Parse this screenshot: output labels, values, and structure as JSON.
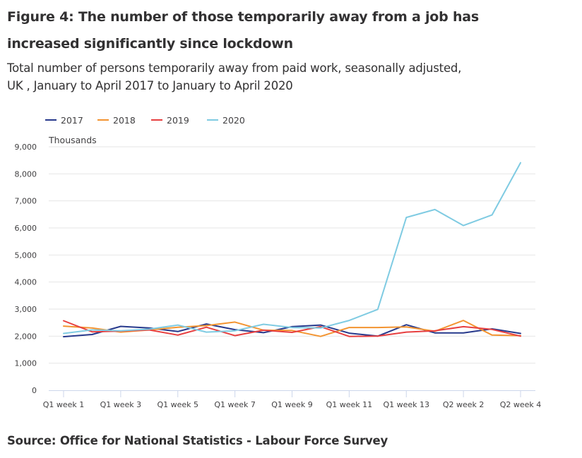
{
  "title": "Figure 4: The number of those temporarily away from a job has increased significantly since lockdown",
  "subtitle": "Total number of persons temporarily away from paid work, seasonally adjusted, UK , January to April 2017 to January to April 2020",
  "source": "Source: Office for National Statistics - Labour Force Survey",
  "chart_data": {
    "type": "line",
    "title": "Figure 4: The number of those temporarily away from a job has increased significantly since lockdown",
    "subtitle": "Total number of persons temporarily away from paid work, seasonally adjusted, UK , January to April 2017 to January to April 2020",
    "xlabel": "",
    "ylabel": "Thousands",
    "ylim": [
      0,
      9000
    ],
    "yticks": [
      0,
      1000,
      2000,
      3000,
      4000,
      5000,
      6000,
      7000,
      8000,
      9000
    ],
    "ytick_labels": [
      "0",
      "1,000",
      "2,000",
      "3,000",
      "4,000",
      "5,000",
      "6,000",
      "7,000",
      "8,000",
      "9,000"
    ],
    "grid": true,
    "legend_position": "top-left",
    "x": [
      "Q1 week 1",
      "Q1 week 2",
      "Q1 week 3",
      "Q1 week 4",
      "Q1 week 5",
      "Q1 week 6",
      "Q1 week 7",
      "Q1 week 8",
      "Q1 week 9",
      "Q1 week 10",
      "Q1 week 11",
      "Q1 week 12",
      "Q1 week 13",
      "Q2 week 1",
      "Q2 week 2",
      "Q2 week 3",
      "Q2 week 4"
    ],
    "xtick_labels": [
      "Q1 week 1",
      "Q1 week 3",
      "Q1 week 5",
      "Q1 week 7",
      "Q1 week 9",
      "Q1 week 11",
      "Q1 week 13",
      "Q2 week 2",
      "Q2 week 4"
    ],
    "series": [
      {
        "name": "2017",
        "color": "#27398c",
        "values": [
          1980,
          2060,
          2360,
          2300,
          2170,
          2450,
          2240,
          2130,
          2350,
          2410,
          2110,
          2000,
          2420,
          2120,
          2120,
          2270,
          2100
        ]
      },
      {
        "name": "2018",
        "color": "#f39431",
        "values": [
          2370,
          2300,
          2150,
          2230,
          2330,
          2390,
          2520,
          2220,
          2210,
          1990,
          2320,
          2320,
          2340,
          2180,
          2580,
          2040,
          2020
        ]
      },
      {
        "name": "2019",
        "color": "#e73f40",
        "values": [
          2570,
          2160,
          2190,
          2230,
          2040,
          2330,
          2020,
          2220,
          2140,
          2350,
          1990,
          2000,
          2150,
          2200,
          2350,
          2250,
          2000
        ]
      },
      {
        "name": "2020",
        "color": "#7fcbe2",
        "values": [
          2100,
          2230,
          2200,
          2260,
          2410,
          2150,
          2200,
          2440,
          2320,
          2300,
          2580,
          2990,
          6390,
          6680,
          6090,
          6480,
          8410
        ]
      }
    ]
  }
}
